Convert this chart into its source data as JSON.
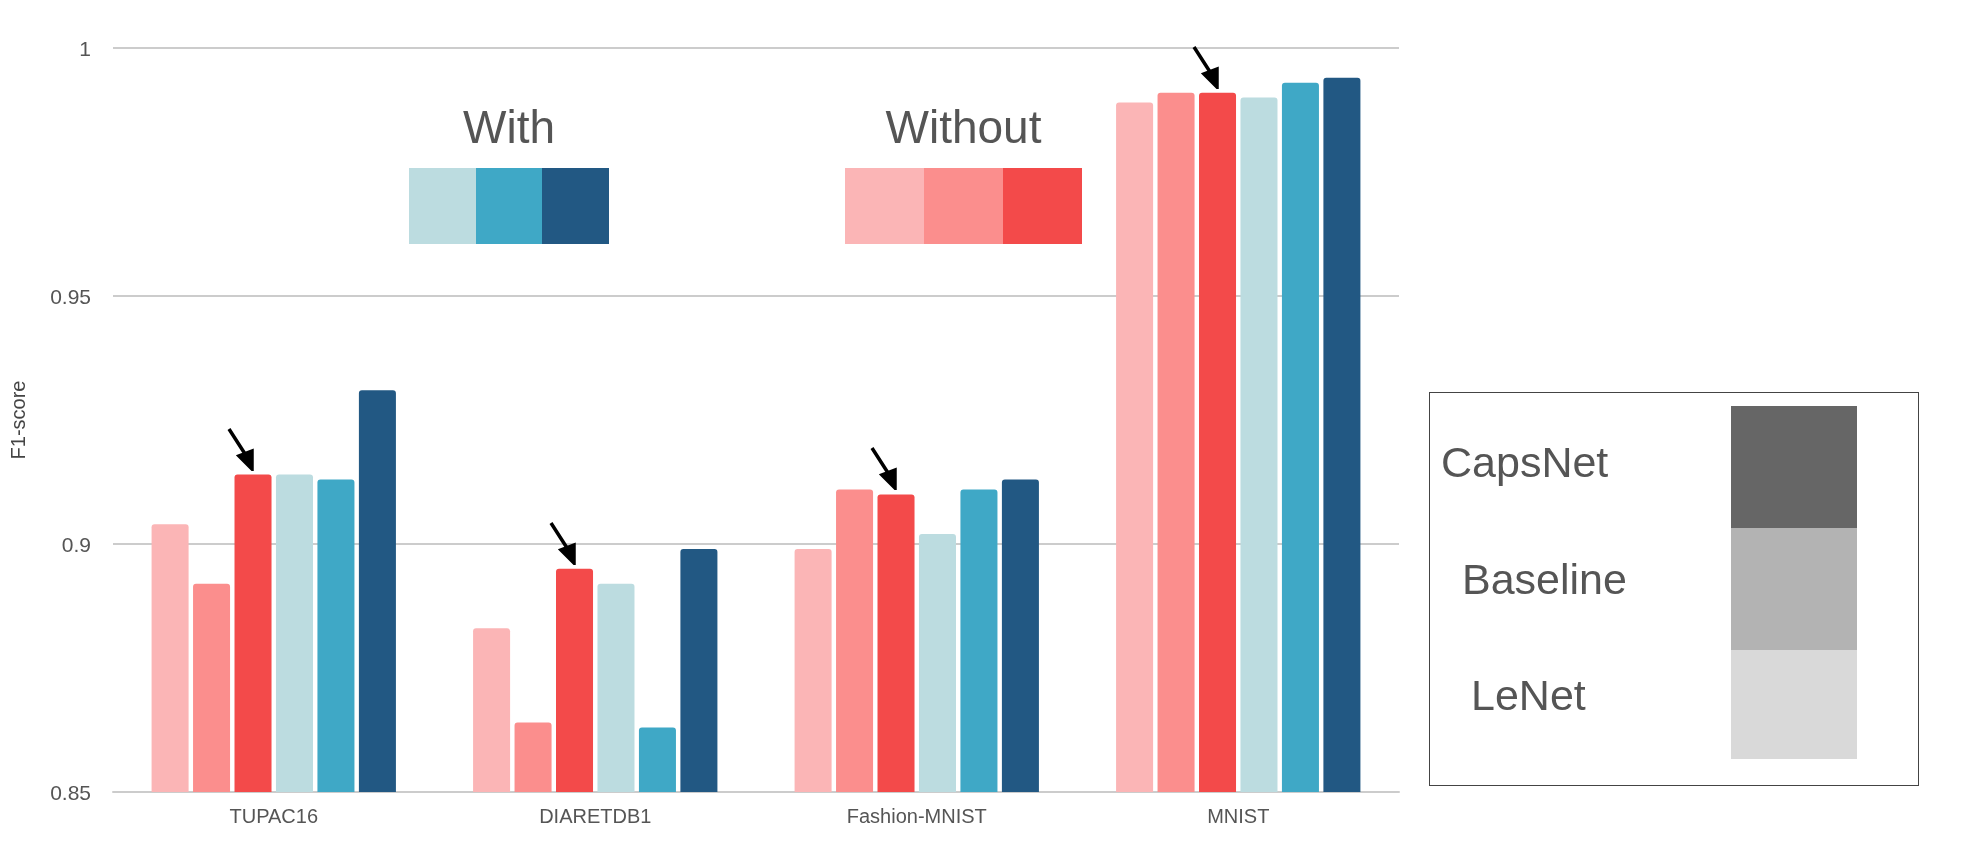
{
  "chart_data": {
    "type": "bar",
    "ylabel": "F1-score",
    "categories": [
      "TUPAC16",
      "DIARETDB1",
      "Fashion-MNIST",
      "MNIST"
    ],
    "series": [
      {
        "color": "#fbb5b6",
        "values": [
          0.904,
          0.883,
          0.899,
          0.989
        ]
      },
      {
        "color": "#fb8e8d",
        "values": [
          0.892,
          0.864,
          0.911,
          0.991
        ]
      },
      {
        "color": "#f34a4a",
        "values": [
          0.914,
          0.895,
          0.91,
          0.991
        ]
      },
      {
        "color": "#bcdce0",
        "values": [
          0.914,
          0.892,
          0.902,
          0.99
        ]
      },
      {
        "color": "#3fa8c6",
        "values": [
          0.913,
          0.863,
          0.911,
          0.993
        ]
      },
      {
        "color": "#225883",
        "values": [
          0.931,
          0.899,
          0.913,
          0.994
        ]
      }
    ],
    "ylim": [
      0.85,
      1
    ],
    "yticks": [
      0.85,
      0.9,
      0.95,
      1
    ],
    "grid": "y",
    "annotations": [
      "With",
      "Without",
      "CapsNet",
      "Baseline",
      "LeNet"
    ]
  }
}
